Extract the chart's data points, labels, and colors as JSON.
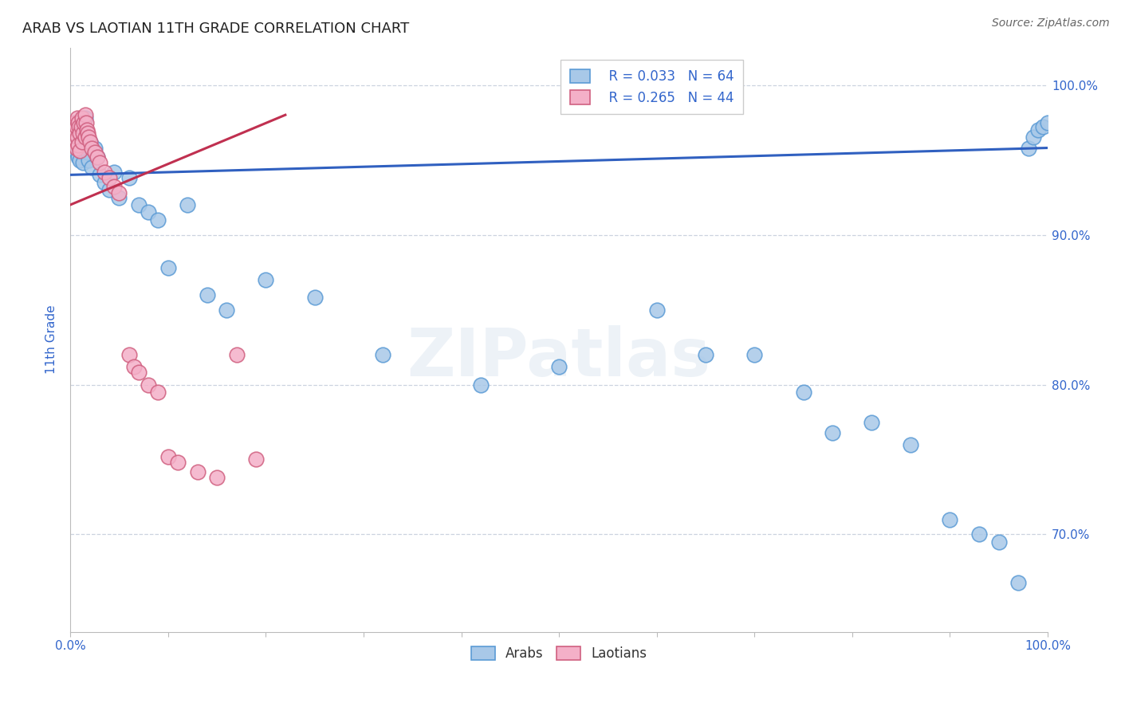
{
  "title": "ARAB VS LAOTIAN 11TH GRADE CORRELATION CHART",
  "source": "Source: ZipAtlas.com",
  "ylabel": "11th Grade",
  "xlim": [
    0.0,
    1.0
  ],
  "ylim": [
    0.635,
    1.025
  ],
  "grid_yticks": [
    0.7,
    0.8,
    0.9,
    1.0
  ],
  "right_yticks": [
    1.0,
    0.9,
    0.8,
    0.7
  ],
  "right_ylabels": [
    "100.0%",
    "90.0%",
    "80.0%",
    "70.0%"
  ],
  "legend_r_arab": "R = 0.033",
  "legend_n_arab": "N = 64",
  "legend_r_laotian": "R = 0.265",
  "legend_n_laotian": "N = 44",
  "arab_face": "#a8c8e8",
  "arab_edge": "#5b9bd5",
  "laotian_face": "#f4b0c8",
  "laotian_edge": "#d06080",
  "trend_arab": "#3060c0",
  "trend_laotian": "#c03050",
  "watermark": "ZIPatlas",
  "arab_x": [
    0.003,
    0.004,
    0.005,
    0.005,
    0.006,
    0.006,
    0.007,
    0.007,
    0.008,
    0.008,
    0.009,
    0.009,
    0.01,
    0.01,
    0.011,
    0.012,
    0.012,
    0.013,
    0.013,
    0.014,
    0.015,
    0.015,
    0.016,
    0.017,
    0.018,
    0.019,
    0.02,
    0.022,
    0.025,
    0.028,
    0.03,
    0.035,
    0.04,
    0.045,
    0.05,
    0.06,
    0.07,
    0.08,
    0.09,
    0.1,
    0.12,
    0.14,
    0.16,
    0.2,
    0.25,
    0.32,
    0.42,
    0.5,
    0.6,
    0.65,
    0.7,
    0.75,
    0.78,
    0.82,
    0.86,
    0.9,
    0.93,
    0.95,
    0.97,
    0.98,
    0.985,
    0.99,
    0.995,
    1.0
  ],
  "arab_y": [
    0.968,
    0.965,
    0.975,
    0.96,
    0.97,
    0.955,
    0.972,
    0.958,
    0.968,
    0.952,
    0.975,
    0.96,
    0.97,
    0.95,
    0.965,
    0.972,
    0.955,
    0.968,
    0.948,
    0.962,
    0.978,
    0.958,
    0.965,
    0.96,
    0.955,
    0.95,
    0.962,
    0.945,
    0.958,
    0.952,
    0.94,
    0.935,
    0.93,
    0.942,
    0.925,
    0.938,
    0.92,
    0.915,
    0.91,
    0.878,
    0.92,
    0.86,
    0.85,
    0.87,
    0.858,
    0.82,
    0.8,
    0.812,
    0.85,
    0.82,
    0.82,
    0.795,
    0.768,
    0.775,
    0.76,
    0.71,
    0.7,
    0.695,
    0.668,
    0.958,
    0.965,
    0.97,
    0.972,
    0.975
  ],
  "laotian_x": [
    0.003,
    0.004,
    0.005,
    0.005,
    0.006,
    0.006,
    0.007,
    0.007,
    0.008,
    0.008,
    0.009,
    0.01,
    0.01,
    0.011,
    0.012,
    0.012,
    0.013,
    0.014,
    0.015,
    0.015,
    0.016,
    0.017,
    0.018,
    0.019,
    0.02,
    0.022,
    0.025,
    0.028,
    0.03,
    0.035,
    0.04,
    0.045,
    0.05,
    0.06,
    0.065,
    0.07,
    0.08,
    0.09,
    0.1,
    0.11,
    0.13,
    0.15,
    0.17,
    0.19
  ],
  "laotian_y": [
    0.97,
    0.968,
    0.975,
    0.962,
    0.972,
    0.958,
    0.978,
    0.965,
    0.975,
    0.96,
    0.972,
    0.968,
    0.956,
    0.972,
    0.978,
    0.962,
    0.968,
    0.975,
    0.98,
    0.965,
    0.975,
    0.97,
    0.968,
    0.965,
    0.962,
    0.958,
    0.955,
    0.952,
    0.948,
    0.942,
    0.938,
    0.932,
    0.928,
    0.82,
    0.812,
    0.808,
    0.8,
    0.795,
    0.752,
    0.748,
    0.742,
    0.738,
    0.82,
    0.75
  ],
  "arab_trend_x": [
    0.0,
    1.0
  ],
  "arab_trend_y": [
    0.94,
    0.958
  ],
  "laotian_trend_x": [
    0.0,
    0.22
  ],
  "laotian_trend_y": [
    0.92,
    0.98
  ]
}
